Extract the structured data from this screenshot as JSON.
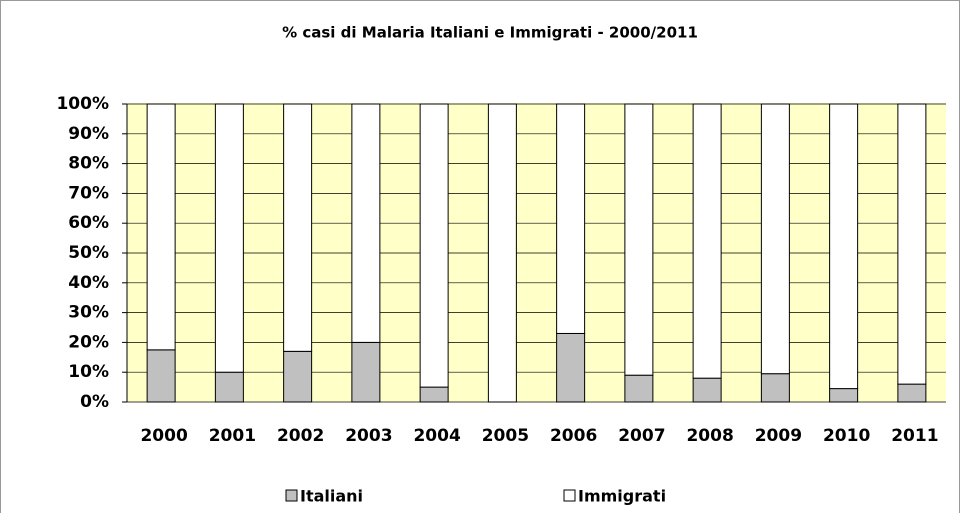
{
  "chart_data": {
    "type": "stacked_bar",
    "title": "% casi di Malaria Italiani e Immigrati - 2000/2011",
    "categories": [
      "2000",
      "2001",
      "2002",
      "2003",
      "2004",
      "2005",
      "2006",
      "2007",
      "2008",
      "2009",
      "2010",
      "2011"
    ],
    "series": [
      {
        "name": "Italiani",
        "color": "#c0c0c0",
        "values": [
          17.5,
          10,
          17,
          20,
          5,
          0,
          23,
          9,
          8,
          9.5,
          4.5,
          6
        ]
      },
      {
        "name": "Immigrati",
        "color": "#ffffff",
        "values": [
          82.5,
          90,
          83,
          80,
          95,
          100,
          77,
          91,
          92,
          90.5,
          95.5,
          94
        ]
      }
    ],
    "ylim": [
      0,
      100
    ],
    "yticks": [
      {
        "value": 0,
        "label": "0%"
      },
      {
        "value": 10,
        "label": "10%"
      },
      {
        "value": 20,
        "label": "20%"
      },
      {
        "value": 30,
        "label": "30%"
      },
      {
        "value": 40,
        "label": "40%"
      },
      {
        "value": 50,
        "label": "50%"
      },
      {
        "value": 60,
        "label": "60%"
      },
      {
        "value": 70,
        "label": "70%"
      },
      {
        "value": 80,
        "label": "80%"
      },
      {
        "value": 90,
        "label": "90%"
      },
      {
        "value": 100,
        "label": "100%"
      }
    ],
    "grid": true,
    "background": "#ffffc8",
    "legend": "bottom"
  }
}
